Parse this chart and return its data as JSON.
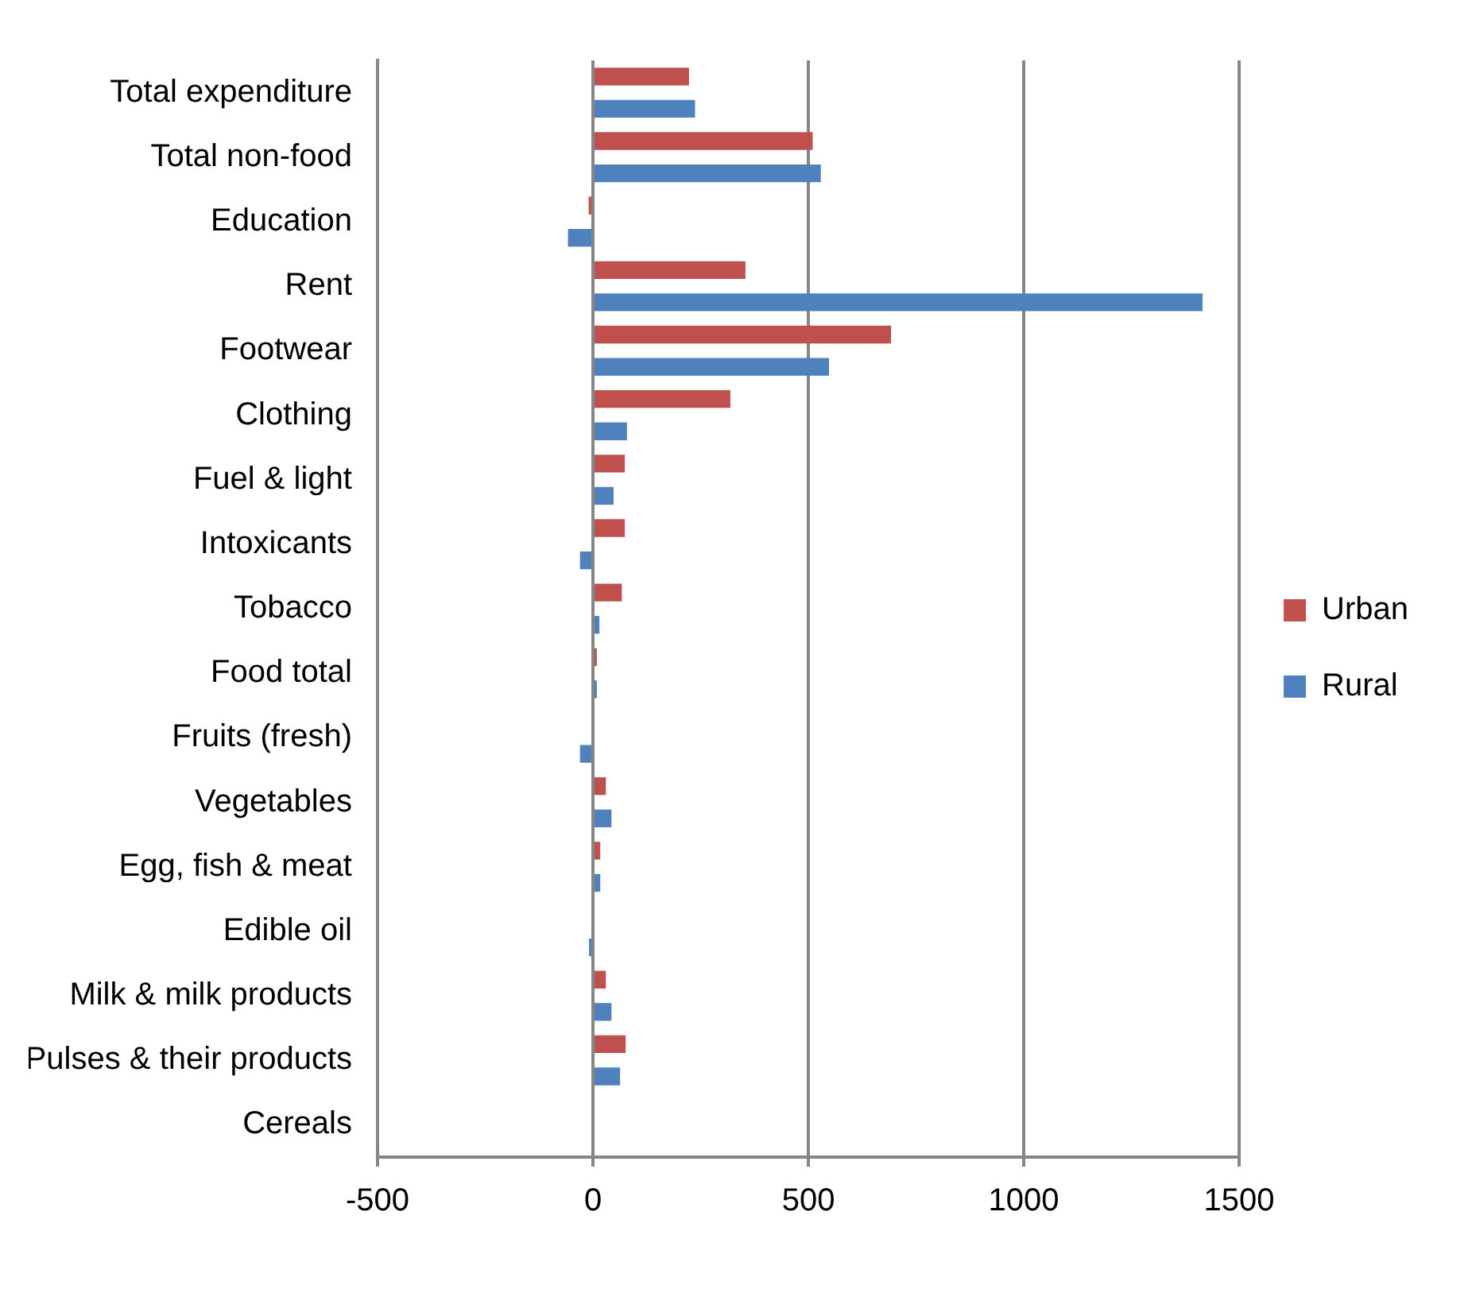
{
  "chart_data": {
    "type": "bar",
    "orientation": "horizontal",
    "categories": [
      "Total expenditure",
      "Total non-food",
      "Education",
      "Rent",
      "Footwear",
      "Clothing",
      "Fuel & light",
      "Intoxicants",
      "Tobacco",
      "Food total",
      "Fruits (fresh)",
      "Vegetables",
      "Egg, fish & meat",
      "Edible oil",
      "Milk & milk products",
      "Pulses & their products",
      "Cereals"
    ],
    "series": [
      {
        "name": "Urban",
        "color": "#c0504d",
        "values": [
          223,
          510,
          -10,
          354,
          692,
          319,
          74,
          74,
          67,
          9,
          0,
          30,
          17,
          0,
          30,
          76,
          0
        ]
      },
      {
        "name": "Rural",
        "color": "#4f81bd",
        "values": [
          237,
          529,
          -58,
          1415,
          548,
          79,
          48,
          -30,
          15,
          9,
          -30,
          43,
          17,
          -9,
          43,
          63,
          0
        ]
      }
    ],
    "xlim": [
      -500,
      1500
    ],
    "xticks": [
      -500,
      0,
      500,
      1000,
      1500
    ],
    "grid": "x",
    "legend": "right"
  }
}
